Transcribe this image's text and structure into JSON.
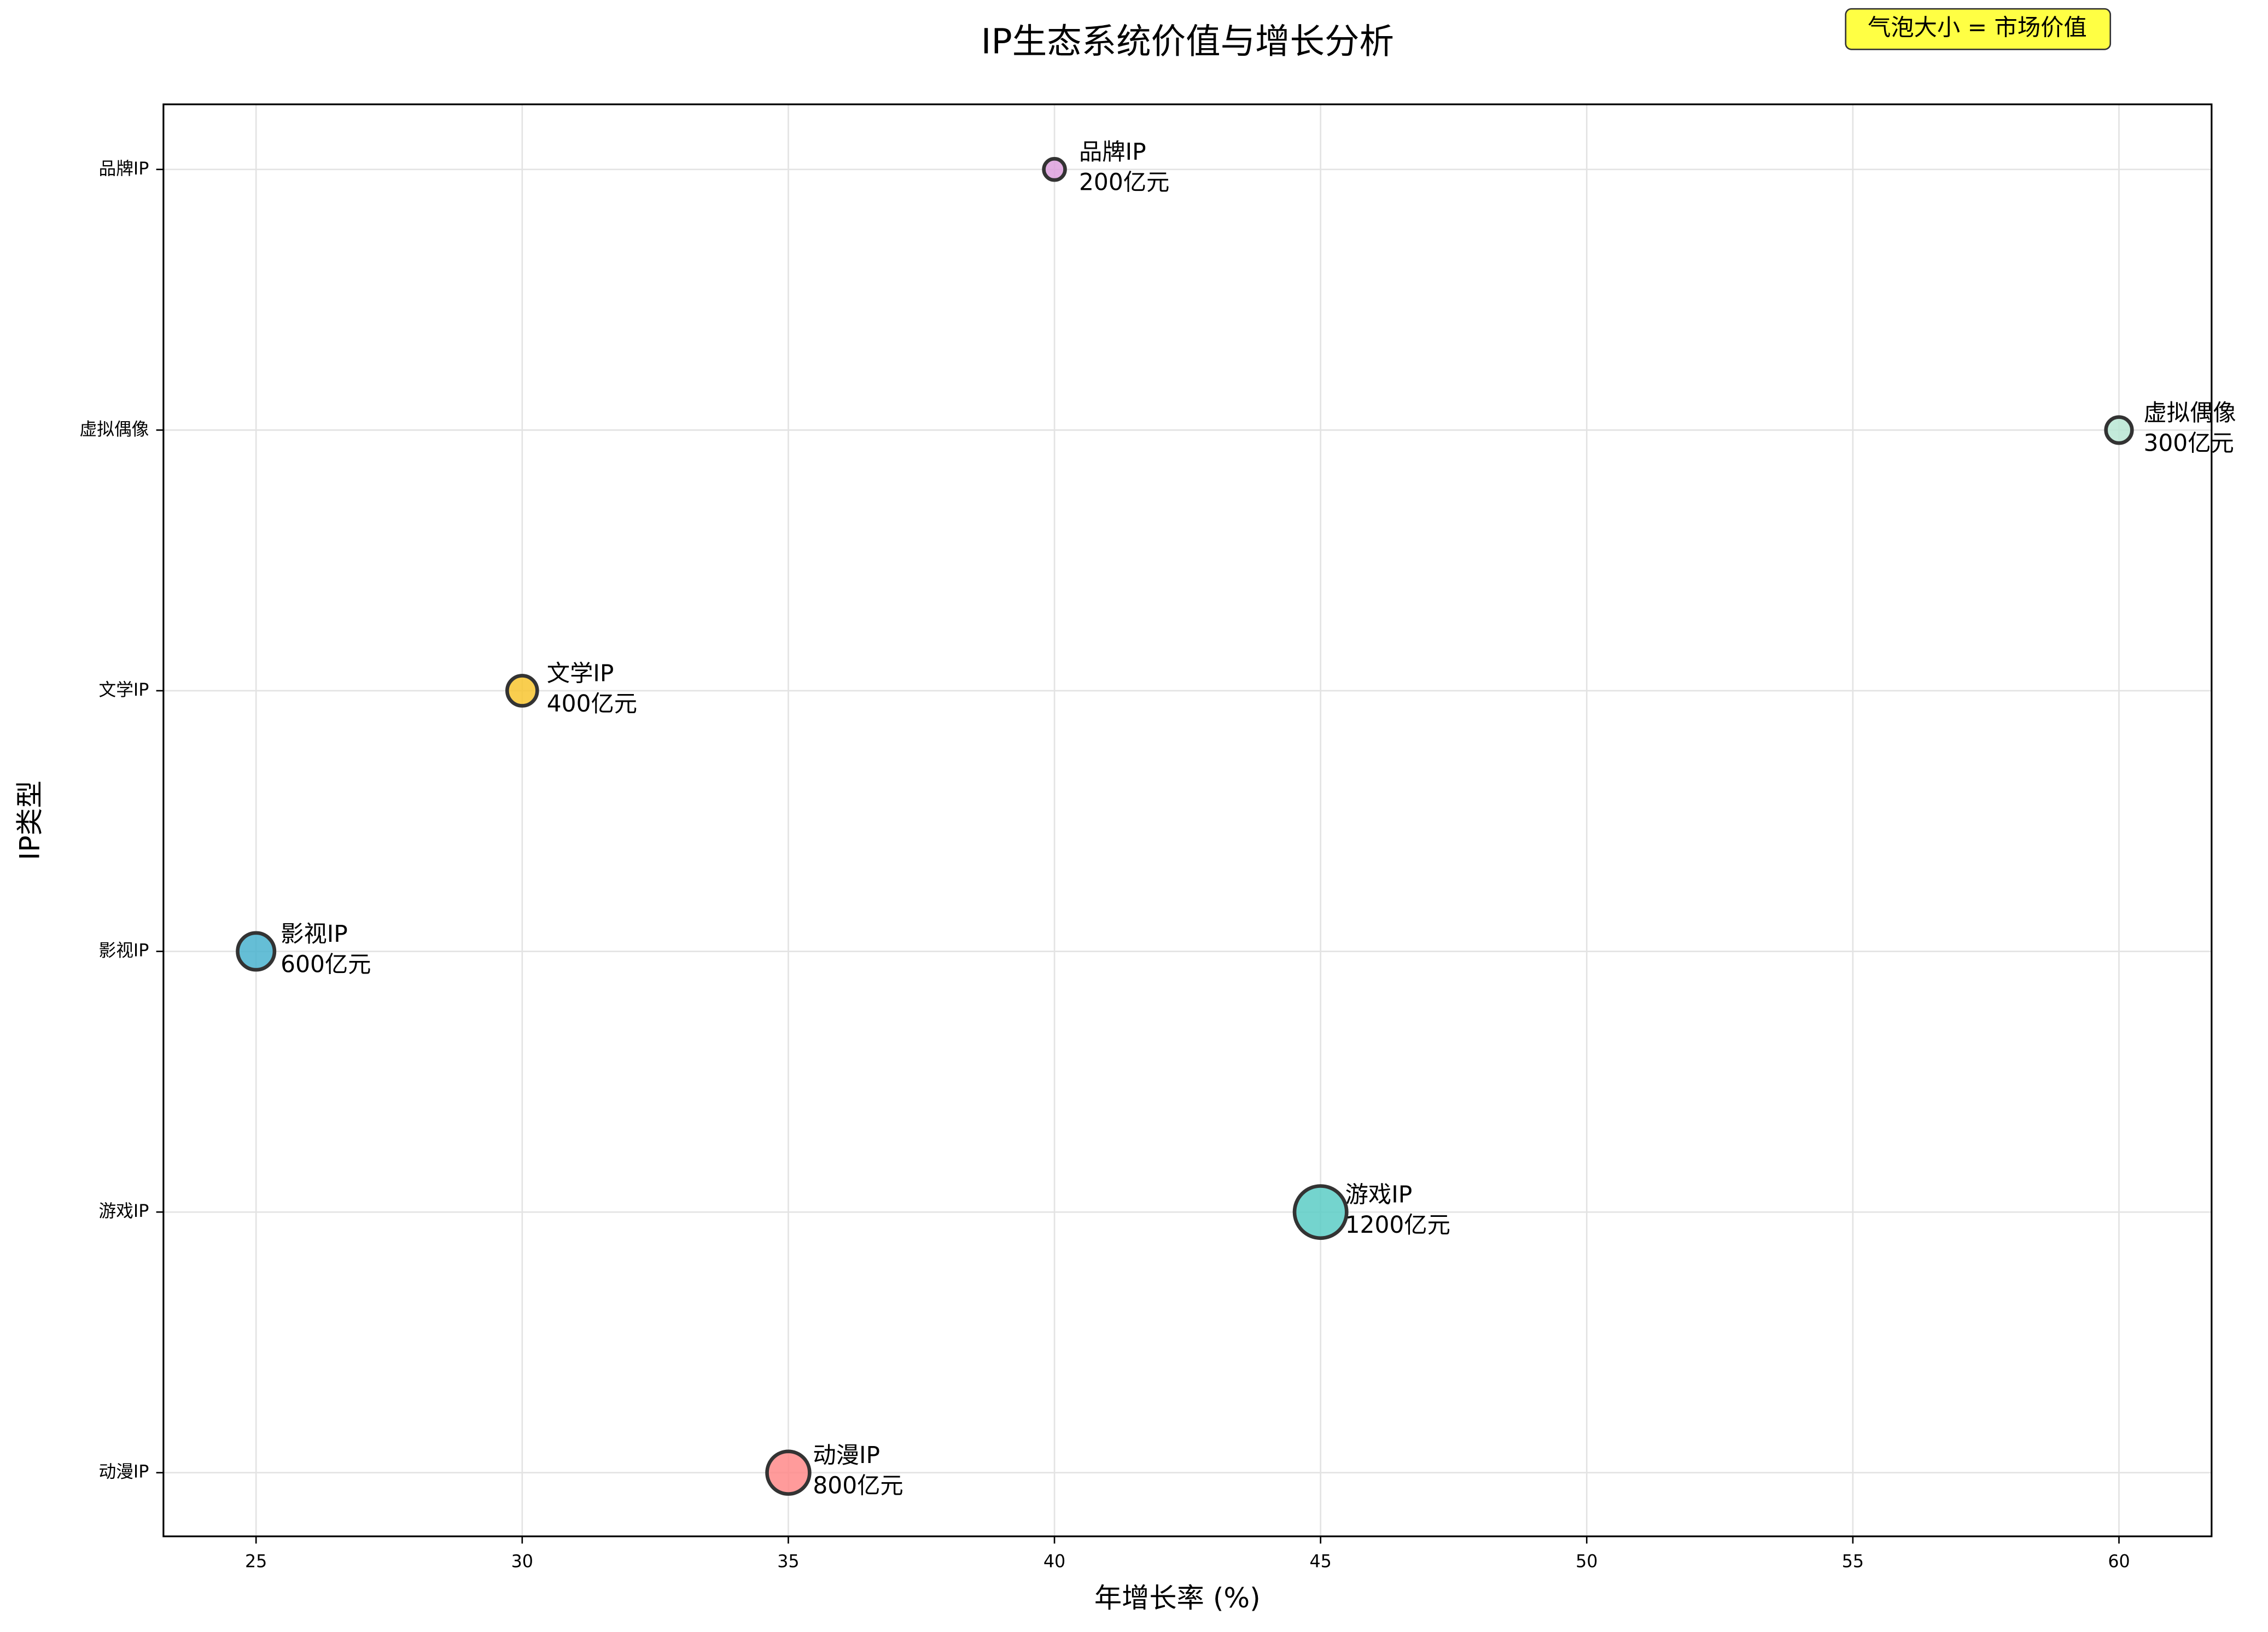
{
  "chart_data": {
    "type": "bubble",
    "title": "IP生态系统价值与增长分析",
    "x_label": "年增长率 (%)",
    "y_label": "IP类型",
    "annotation": "气泡大小 = 市场价值",
    "categories": [
      "动漫IP",
      "游戏IP",
      "影视IP",
      "文学IP",
      "虚拟偶像",
      "品牌IP"
    ],
    "x": [
      35,
      45,
      25,
      30,
      60,
      40
    ],
    "sizes": [
      800,
      1200,
      600,
      400,
      300,
      200
    ],
    "value_labels": [
      "800亿元",
      "1200亿元",
      "600亿元",
      "400亿元",
      "300亿元",
      "200亿元"
    ],
    "colors": [
      "#ff8a8a",
      "#5ccdc5",
      "#4ab3cf",
      "#f8c630",
      "#b9e6d3",
      "#dda0dd"
    ],
    "xlim": [
      23.26,
      61.74
    ],
    "xticks": [
      25,
      30,
      35,
      40,
      45,
      50,
      55,
      60
    ],
    "grid": true
  }
}
